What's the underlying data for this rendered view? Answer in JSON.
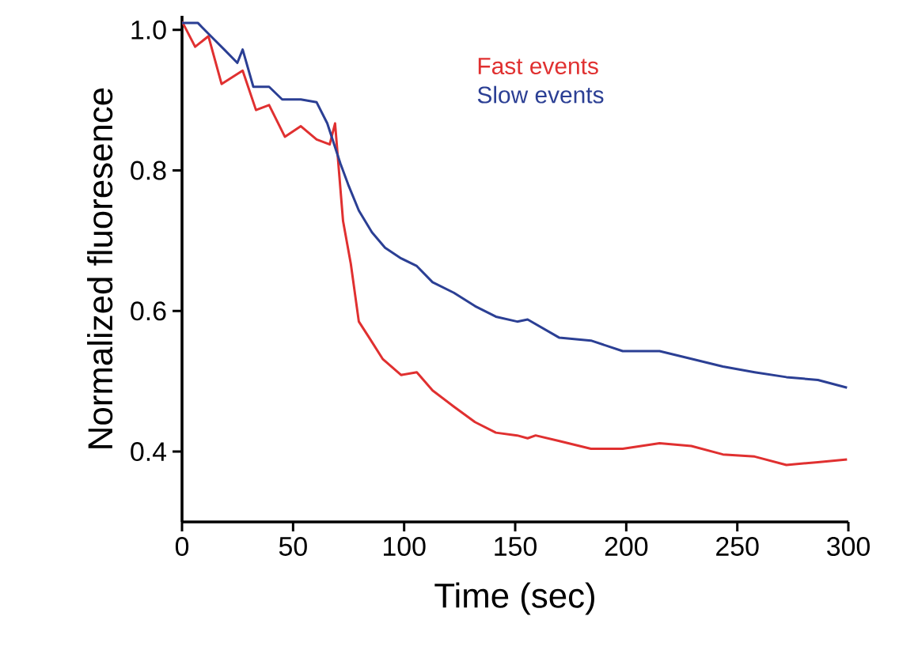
{
  "chart_data": {
    "type": "line",
    "xlabel": "Time (sec)",
    "ylabel": "Normalized fluoresence",
    "xlim": [
      0,
      300
    ],
    "ylim": [
      0.3,
      1.02
    ],
    "xticks": [
      0,
      50,
      100,
      150,
      200,
      250,
      300
    ],
    "yticks": [
      {
        "value": 0.4,
        "label": "0.4"
      },
      {
        "value": 0.6,
        "label": "0.6"
      },
      {
        "value": 0.8,
        "label": "0.8"
      },
      {
        "value": 1.0,
        "label": "1.0"
      }
    ],
    "grid": false,
    "legend": "top right",
    "marker": "none",
    "line_style": "solid",
    "series": [
      {
        "name": "Fast events",
        "color": "#e03030",
        "x": [
          0,
          5.9,
          11.9,
          17.8,
          27.3,
          33.3,
          39.2,
          46.3,
          53.5,
          60.6,
          66.5,
          68.9,
          72.5,
          76,
          79.6,
          84.3,
          90.3,
          98.6,
          105.7,
          112.8,
          122.4,
          131.9,
          141.3,
          150.9,
          155.6,
          159.2,
          169.9,
          184.1,
          198.4,
          215,
          229.3,
          243.5,
          257.8,
          272.1,
          286.3,
          299.4
        ],
        "values": [
          1.012,
          0.976,
          0.991,
          0.923,
          0.942,
          0.886,
          0.893,
          0.848,
          0.863,
          0.844,
          0.837,
          0.867,
          0.728,
          0.667,
          0.585,
          0.562,
          0.532,
          0.509,
          0.513,
          0.487,
          0.464,
          0.442,
          0.427,
          0.423,
          0.419,
          0.423,
          0.415,
          0.404,
          0.404,
          0.412,
          0.408,
          0.396,
          0.393,
          0.381,
          0.385,
          0.389
        ]
      },
      {
        "name": "Slow events",
        "color": "#2b3f94",
        "x": [
          0,
          7.1,
          13,
          19,
          24.9,
          27.3,
          32.1,
          39.2,
          45.1,
          53.5,
          60.6,
          65.4,
          71.3,
          74.8,
          79.6,
          85.5,
          91.4,
          98.6,
          105.7,
          112.8,
          122.4,
          131.9,
          141.3,
          150.9,
          155.6,
          169.9,
          184.1,
          198.4,
          215,
          229.3,
          243.5,
          257.8,
          272.1,
          286.3,
          299.4
        ],
        "values": [
          1.01,
          1.01,
          0.991,
          0.972,
          0.953,
          0.972,
          0.919,
          0.919,
          0.901,
          0.901,
          0.897,
          0.867,
          0.81,
          0.78,
          0.743,
          0.712,
          0.69,
          0.675,
          0.664,
          0.641,
          0.626,
          0.607,
          0.592,
          0.585,
          0.588,
          0.562,
          0.558,
          0.543,
          0.543,
          0.532,
          0.521,
          0.513,
          0.506,
          0.502,
          0.491
        ]
      }
    ]
  }
}
